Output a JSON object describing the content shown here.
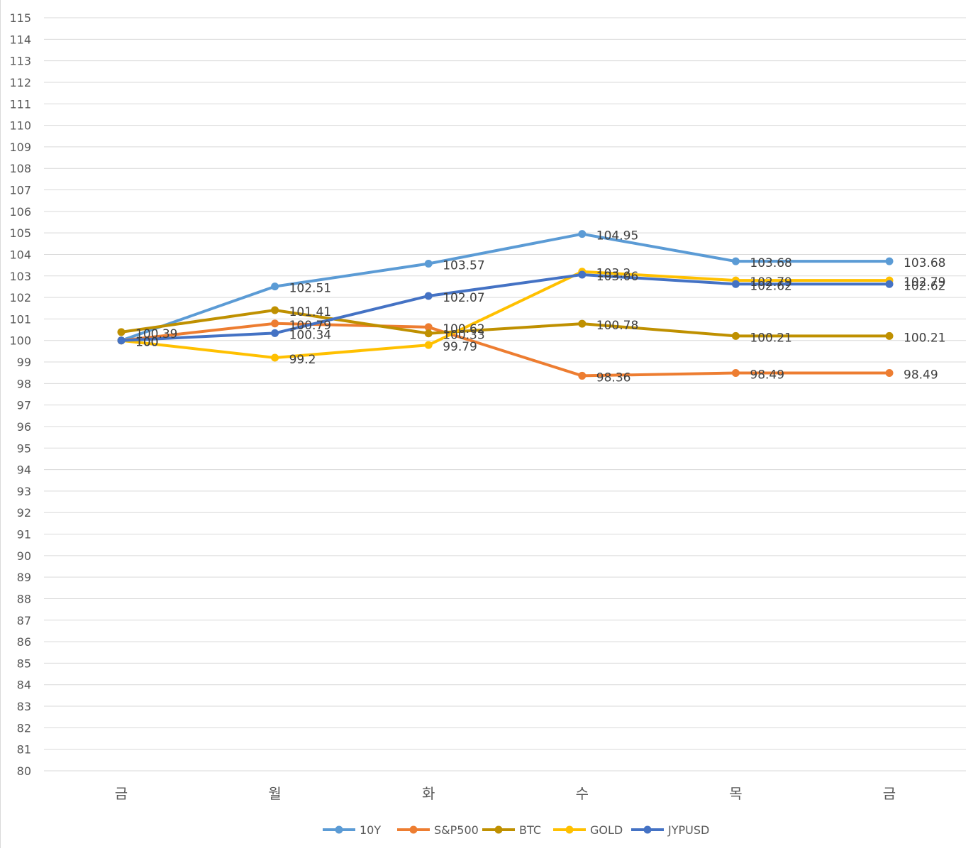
{
  "chart_data": {
    "type": "line",
    "title": "",
    "xlabel": "",
    "ylabel": "",
    "categories": [
      "금",
      "월",
      "화",
      "수",
      "목",
      "금"
    ],
    "ylim": [
      80,
      115
    ],
    "ytick_step": 1,
    "grid": true,
    "legend_position": "bottom",
    "series": [
      {
        "name": "10Y",
        "color": "#5b9bd5",
        "values": [
          100,
          102.51,
          103.57,
          104.95,
          103.68,
          103.68
        ]
      },
      {
        "name": "S&P500",
        "color": "#ed7d31",
        "values": [
          100,
          100.79,
          100.62,
          98.36,
          98.49,
          98.49
        ]
      },
      {
        "name": "BTC",
        "color": "#bf9000",
        "values": [
          100.39,
          101.41,
          100.33,
          100.78,
          100.21,
          100.21
        ]
      },
      {
        "name": "GOLD",
        "color": "#ffc000",
        "values": [
          100,
          99.2,
          99.79,
          103.2,
          102.79,
          102.79
        ]
      },
      {
        "name": "JYPUSD",
        "color": "#4472c4",
        "values": [
          100,
          100.34,
          102.07,
          103.06,
          102.62,
          102.62
        ]
      }
    ]
  }
}
